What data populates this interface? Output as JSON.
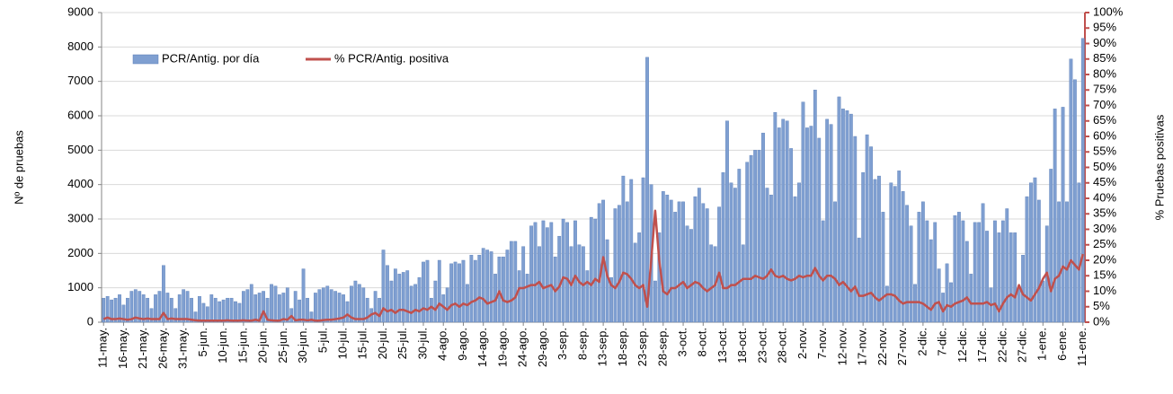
{
  "chart_data": {
    "type": "bar",
    "y_label": "Nº de pruebas",
    "y2_label": "% Pruebas positivas",
    "categories": [
      "11-may.",
      null,
      null,
      null,
      null,
      "16-may.",
      null,
      null,
      null,
      null,
      "21-may.",
      null,
      null,
      null,
      null,
      "26-may.",
      null,
      null,
      null,
      null,
      "31-may.",
      null,
      null,
      null,
      null,
      "5-jun.",
      null,
      null,
      null,
      null,
      "10-jun.",
      null,
      null,
      null,
      null,
      "15-jun.",
      null,
      null,
      null,
      null,
      "20-jun.",
      null,
      null,
      null,
      null,
      "25-jun.",
      null,
      null,
      null,
      null,
      "30-jun.",
      null,
      null,
      null,
      null,
      "5-jul.",
      null,
      null,
      null,
      null,
      "10-jul.",
      null,
      null,
      null,
      null,
      "15-jul.",
      null,
      null,
      null,
      null,
      "20-jul.",
      null,
      null,
      null,
      null,
      "25-jul.",
      null,
      null,
      null,
      null,
      "30-jul.",
      null,
      null,
      null,
      null,
      "4-ago.",
      null,
      null,
      null,
      null,
      "9-ago.",
      null,
      null,
      null,
      null,
      "14-ago.",
      null,
      null,
      null,
      null,
      "19-ago.",
      null,
      null,
      null,
      null,
      "24-ago.",
      null,
      null,
      null,
      null,
      "29-ago.",
      null,
      null,
      null,
      null,
      "3-sep.",
      null,
      null,
      null,
      null,
      "8-sep.",
      null,
      null,
      null,
      null,
      "13-sep.",
      null,
      null,
      null,
      null,
      "18-sep.",
      null,
      null,
      null,
      null,
      "23-sep.",
      null,
      null,
      null,
      null,
      "28-sep.",
      null,
      null,
      null,
      null,
      "3-oct.",
      null,
      null,
      null,
      null,
      "8-oct.",
      null,
      null,
      null,
      null,
      "13-oct.",
      null,
      null,
      null,
      null,
      "18-oct.",
      null,
      null,
      null,
      null,
      "23-oct.",
      null,
      null,
      null,
      null,
      "28-oct.",
      null,
      null,
      null,
      null,
      "2-nov.",
      null,
      null,
      null,
      null,
      "7-nov.",
      null,
      null,
      null,
      null,
      "12-nov.",
      null,
      null,
      null,
      null,
      "17-nov.",
      null,
      null,
      null,
      null,
      "22-nov.",
      null,
      null,
      null,
      null,
      "27-nov.",
      null,
      null,
      null,
      null,
      "2-dic.",
      null,
      null,
      null,
      null,
      "7-dic.",
      null,
      null,
      null,
      null,
      "12-dic.",
      null,
      null,
      null,
      null,
      "17-dic.",
      null,
      null,
      null,
      null,
      "22-dic.",
      null,
      null,
      null,
      null,
      "27-dic.",
      null,
      null,
      null,
      null,
      "1-ene.",
      null,
      null,
      null,
      null,
      "6-ene.",
      null,
      null,
      null,
      null,
      "11-ene."
    ],
    "series": [
      {
        "name": "PCR/Antig. por día",
        "color": "#7f9fd1",
        "values": [
          700,
          750,
          650,
          700,
          800,
          500,
          700,
          900,
          950,
          900,
          800,
          700,
          400,
          800,
          900,
          1650,
          850,
          700,
          400,
          800,
          950,
          900,
          700,
          300,
          750,
          550,
          450,
          800,
          700,
          600,
          650,
          700,
          700,
          600,
          550,
          900,
          950,
          1100,
          800,
          850,
          900,
          700,
          1100,
          1050,
          800,
          850,
          1000,
          400,
          900,
          650,
          1550,
          700,
          300,
          850,
          950,
          1000,
          1050,
          950,
          900,
          850,
          800,
          600,
          1050,
          1200,
          1100,
          1000,
          700,
          400,
          900,
          700,
          2100,
          1650,
          1200,
          1550,
          1400,
          1450,
          1500,
          1050,
          1100,
          1300,
          1750,
          1800,
          700,
          1200,
          1800,
          800,
          1000,
          1700,
          1750,
          1700,
          1800,
          1100,
          1950,
          1800,
          1950,
          2150,
          2100,
          2050,
          1400,
          1900,
          1900,
          2100,
          2350,
          2350,
          1500,
          2200,
          1400,
          2800,
          2900,
          2200,
          2950,
          2750,
          2900,
          1900,
          2500,
          3000,
          2900,
          2200,
          2950,
          2250,
          2200,
          1500,
          3050,
          3000,
          3450,
          3550,
          2400,
          1300,
          3300,
          3400,
          4250,
          3500,
          4150,
          2300,
          2600,
          4200,
          7700,
          4000,
          1200,
          2600,
          3800,
          3700,
          3550,
          3200,
          3500,
          3500,
          2800,
          2700,
          3650,
          3900,
          3450,
          3300,
          2250,
          2200,
          3350,
          4350,
          5850,
          4050,
          3900,
          4450,
          2250,
          4650,
          4850,
          5000,
          5000,
          5500,
          3900,
          3700,
          6100,
          5650,
          5900,
          5850,
          5050,
          3650,
          4050,
          6400,
          5650,
          5700,
          6750,
          5350,
          2950,
          5900,
          5750,
          3500,
          6550,
          6200,
          6150,
          6050,
          5400,
          2450,
          4350,
          5450,
          5100,
          4150,
          4250,
          3200,
          1050,
          4050,
          3950,
          4400,
          3800,
          3400,
          2800,
          1100,
          3200,
          3500,
          2950,
          2400,
          2900,
          1550,
          850,
          1700,
          1150,
          3100,
          3200,
          2950,
          2350,
          1400,
          2900,
          2900,
          3450,
          2650,
          1000,
          2950,
          2600,
          2950,
          3300,
          2600,
          2600,
          1000,
          1950,
          3650,
          4050,
          4200,
          3550,
          1200,
          2800,
          4450,
          6200,
          3500,
          6250,
          3500,
          7650,
          7050,
          4050,
          8250
        ]
      },
      {
        "name": "% PCR/Antig. positiva",
        "color": "#c0504d",
        "type": "line",
        "axis": "y2",
        "values": [
          1,
          1.5,
          1,
          1,
          1.2,
          1,
          0.8,
          1,
          1.5,
          1.2,
          1,
          1.2,
          1,
          1,
          1,
          3,
          1,
          1.2,
          1,
          1,
          1,
          1,
          0.8,
          0.6,
          0.5,
          0.5,
          0.5,
          0.5,
          0.5,
          0.5,
          0.5,
          0.6,
          0.5,
          0.5,
          0.5,
          0.6,
          0.5,
          0.5,
          0.8,
          0.5,
          3.5,
          0.8,
          0.6,
          0.5,
          0.5,
          1,
          0.8,
          2,
          0.6,
          0.8,
          0.8,
          0.6,
          0.8,
          0.5,
          0.5,
          0.7,
          0.8,
          0.8,
          1,
          1.2,
          1.5,
          2.5,
          1.5,
          1,
          1,
          1,
          1.5,
          2.5,
          3,
          2,
          4.5,
          3.5,
          4,
          3,
          4,
          4,
          3.5,
          3,
          4,
          3.5,
          4.5,
          4,
          5,
          4,
          6,
          5,
          4,
          5.5,
          6,
          5,
          6,
          5.5,
          6.5,
          7,
          8,
          7.5,
          6,
          6.5,
          7,
          10,
          7,
          6.5,
          7,
          8,
          11,
          11,
          11.5,
          12,
          12,
          13,
          11,
          11.5,
          12,
          10,
          11.5,
          14.5,
          14,
          12,
          15,
          13,
          12,
          13,
          12,
          14,
          13,
          21,
          15,
          12,
          11,
          13,
          16,
          15.5,
          14,
          12,
          11,
          12,
          5,
          20,
          36,
          20,
          10,
          9,
          11,
          11,
          12,
          13,
          11,
          12,
          13,
          12.5,
          11,
          10,
          11,
          12,
          16,
          11,
          11,
          12,
          12,
          13,
          14,
          14,
          14,
          15,
          14.5,
          14,
          15,
          17,
          15,
          14.5,
          15,
          14,
          13.5,
          14,
          15,
          14.5,
          15,
          15,
          17.5,
          15,
          13.5,
          15,
          15,
          14,
          12,
          13,
          11.5,
          10,
          11.5,
          8.5,
          8.5,
          9,
          9.5,
          8,
          7,
          8,
          9,
          9,
          8.5,
          7,
          6,
          6.5,
          6.5,
          6.5,
          6.5,
          6,
          5,
          4,
          6,
          6.5,
          3.5,
          5.5,
          5,
          6,
          6.5,
          7,
          8,
          6,
          6,
          6,
          6,
          6.5,
          5.5,
          6,
          3.5,
          6,
          8,
          9,
          8,
          12,
          9,
          8,
          7,
          9,
          11,
          14,
          16,
          10,
          14,
          15,
          18,
          17,
          20,
          18.5,
          17,
          22
        ]
      }
    ],
    "ylim": [
      0,
      9000
    ],
    "yticks": [
      0,
      1000,
      2000,
      3000,
      4000,
      5000,
      6000,
      7000,
      8000,
      9000
    ],
    "y2lim": [
      0,
      100
    ],
    "y2ticks": [
      {
        "value": 0,
        "label": "0%"
      },
      {
        "value": 5,
        "label": "5%"
      },
      {
        "value": 10,
        "label": "10%"
      },
      {
        "value": 15,
        "label": "15%"
      },
      {
        "value": 20,
        "label": "20%"
      },
      {
        "value": 25,
        "label": "25%"
      },
      {
        "value": 30,
        "label": "30%"
      },
      {
        "value": 35,
        "label": "35%"
      },
      {
        "value": 40,
        "label": "40%"
      },
      {
        "value": 45,
        "label": "45%"
      },
      {
        "value": 50,
        "label": "50%"
      },
      {
        "value": 55,
        "label": "55%"
      },
      {
        "value": 60,
        "label": "60%"
      },
      {
        "value": 65,
        "label": "65%"
      },
      {
        "value": 70,
        "label": "70%"
      },
      {
        "value": 75,
        "label": "75%"
      },
      {
        "value": 80,
        "label": "80%"
      },
      {
        "value": 85,
        "label": "85%"
      },
      {
        "value": 90,
        "label": "90%"
      },
      {
        "value": 95,
        "label": "95%"
      },
      {
        "value": 100,
        "label": "100%"
      }
    ],
    "y2_axis_color": "#c0504d",
    "grid": true,
    "legend": "top-left"
  }
}
